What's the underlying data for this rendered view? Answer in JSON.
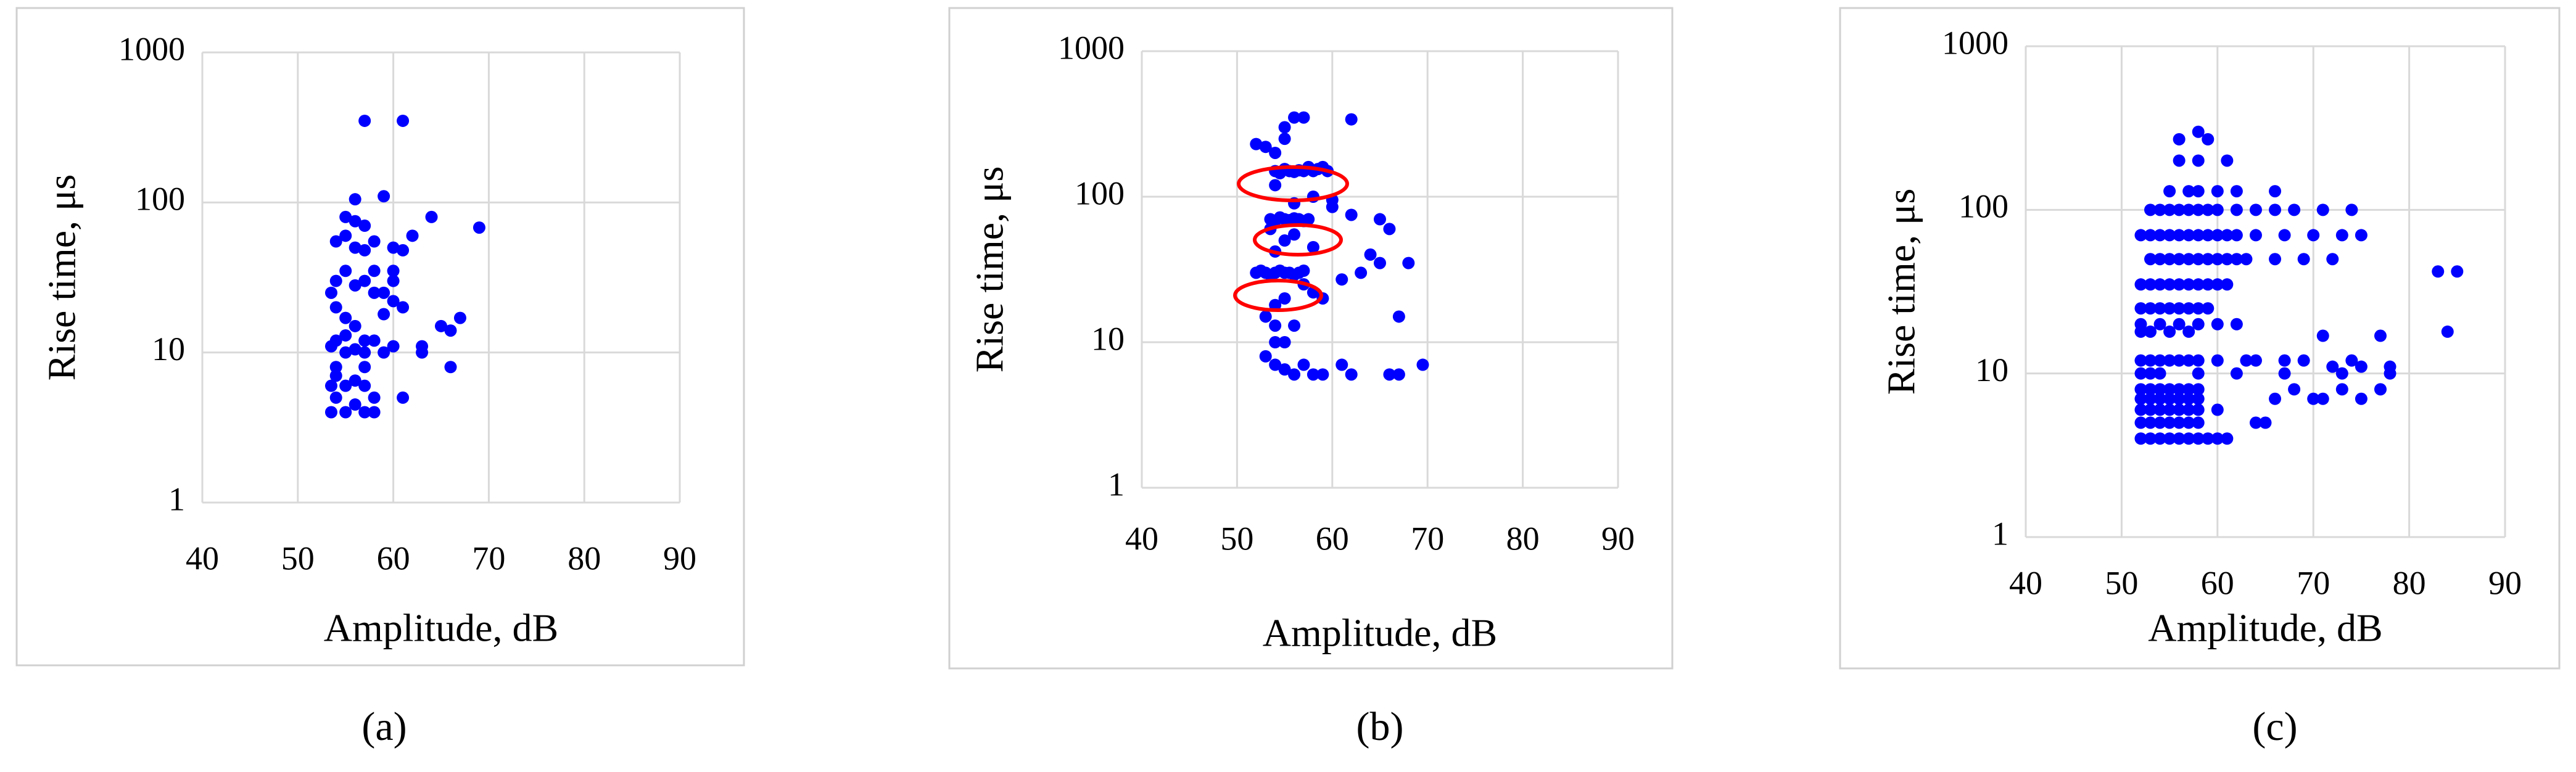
{
  "chart_data": [
    {
      "type": "scatter",
      "panel_label": "(a)",
      "x_label": "Amplitude, dB",
      "y_label": "Rise time, μs",
      "color": "#0000ff",
      "xlim": [
        40,
        90
      ],
      "xticks": [
        40,
        50,
        60,
        70,
        80,
        90
      ],
      "ylim": [
        1,
        1000
      ],
      "yticks": [
        1,
        10,
        100,
        1000
      ],
      "log_y": true,
      "grid": true,
      "x": [
        57,
        61,
        56,
        59,
        64,
        69,
        55,
        56,
        57,
        55,
        54,
        56,
        57,
        58,
        60,
        61,
        62,
        60,
        59,
        55,
        54,
        56,
        57,
        58,
        60,
        59,
        54,
        55,
        53.5,
        56,
        54,
        55,
        57,
        58,
        60,
        56,
        57,
        55,
        53.5,
        59,
        63,
        63,
        65,
        66,
        67,
        66,
        61,
        54,
        55,
        56,
        57,
        58,
        53.5,
        54,
        55,
        57,
        58,
        56,
        53.5,
        54,
        57,
        61,
        60,
        58
      ],
      "values": [
        350,
        350,
        105,
        110,
        80,
        68,
        80,
        75,
        70,
        60,
        55,
        50,
        48,
        55,
        50,
        48,
        60,
        30,
        25,
        35,
        30,
        28,
        30,
        25,
        22,
        18,
        20,
        17,
        25,
        15,
        12,
        13,
        12,
        12,
        11,
        10.5,
        10,
        10,
        11,
        10,
        10,
        11,
        15,
        14,
        17,
        8,
        5,
        7,
        6,
        6.5,
        6,
        5,
        6,
        5,
        4,
        4,
        4,
        4.5,
        4,
        8,
        8,
        20,
        35,
        35
      ]
    },
    {
      "type": "scatter",
      "panel_label": "(b)",
      "x_label": "Amplitude, dB",
      "y_label": "Rise time, μs",
      "color": "#0000ff",
      "xlim": [
        40,
        90
      ],
      "xticks": [
        40,
        50,
        60,
        70,
        80,
        90
      ],
      "ylim": [
        1,
        1000
      ],
      "yticks": [
        1,
        10,
        100,
        1000
      ],
      "log_y": true,
      "grid": true,
      "x": [
        56,
        57,
        62,
        55,
        52,
        53,
        54,
        55,
        54,
        54.5,
        55,
        55.5,
        56,
        56.5,
        57,
        57.5,
        58,
        58.5,
        59,
        59.5,
        53.5,
        54,
        54.5,
        55,
        55.5,
        56,
        56.5,
        57,
        57.5,
        52,
        52.5,
        53,
        53.5,
        54,
        54.5,
        55,
        55.5,
        56,
        56.5,
        57,
        60,
        62,
        65,
        66,
        64,
        65,
        68,
        63,
        61,
        58,
        55,
        54,
        56,
        57,
        58,
        59,
        55,
        54,
        53,
        54,
        56,
        55,
        54,
        53,
        54,
        55,
        56,
        57,
        58,
        59,
        61,
        62,
        66,
        67,
        69.5,
        67,
        58,
        56,
        54,
        53.5,
        60
      ],
      "values": [
        350,
        350,
        340,
        300,
        230,
        220,
        200,
        250,
        150,
        145,
        155,
        150,
        148,
        152,
        150,
        160,
        150,
        155,
        160,
        150,
        70,
        68,
        72,
        70,
        69,
        71,
        70,
        68,
        70,
        30,
        31,
        30,
        29,
        30,
        31,
        30,
        30,
        29,
        30,
        31,
        85,
        75,
        70,
        60,
        40,
        35,
        35,
        30,
        27,
        45,
        50,
        42,
        55,
        25,
        22,
        20,
        20,
        18,
        15,
        13,
        13,
        10,
        10,
        8,
        7,
        6.5,
        6,
        7,
        6,
        6,
        7,
        6,
        6,
        6,
        7,
        15,
        100,
        90,
        120,
        60,
        95
      ]
    },
    {
      "type": "scatter",
      "panel_label": "(c)",
      "x_label": "Amplitude, dB",
      "y_label": "Rise time, μs",
      "color": "#0000ff",
      "xlim": [
        40,
        90
      ],
      "xticks": [
        40,
        50,
        60,
        70,
        80,
        90
      ],
      "ylim": [
        1,
        1000
      ],
      "yticks": [
        1,
        10,
        100,
        1000
      ],
      "log_y": true,
      "grid": true,
      "x": [
        52,
        53,
        54,
        55,
        56,
        57,
        58,
        59,
        60,
        61,
        52,
        53,
        54,
        55,
        56,
        57,
        58,
        64,
        65,
        52,
        53,
        54,
        55,
        56,
        57,
        58,
        60,
        52,
        53,
        54,
        55,
        56,
        57,
        58,
        66,
        70,
        71,
        75,
        52,
        53,
        54,
        55,
        56,
        57,
        58,
        68,
        73,
        77,
        52,
        53,
        54,
        58,
        62,
        67,
        73,
        78,
        52,
        53,
        54,
        55,
        56,
        57,
        58,
        60,
        63,
        64,
        67,
        69,
        74,
        72,
        75,
        78,
        52,
        53,
        55,
        57,
        84,
        71,
        77,
        52,
        54,
        56,
        58,
        60,
        62,
        52,
        53,
        54,
        55,
        56,
        57,
        58,
        59,
        52,
        53,
        54,
        55,
        56,
        57,
        58,
        59,
        60,
        61,
        53,
        54,
        55,
        56,
        57,
        58,
        59,
        60,
        61,
        62,
        63,
        66,
        69,
        72,
        52,
        53,
        54,
        55,
        56,
        57,
        58,
        59,
        60,
        61,
        62,
        64,
        67,
        70,
        73,
        75,
        53,
        54,
        55,
        56,
        57,
        58,
        59,
        60,
        62,
        64,
        66,
        68,
        71,
        74,
        55,
        57,
        58,
        60,
        62,
        66,
        83,
        85,
        56,
        58,
        61,
        56,
        59,
        58
      ],
      "values": [
        4,
        4,
        4,
        4,
        4,
        4,
        4,
        4,
        4,
        4,
        5,
        5,
        5,
        5,
        5,
        5,
        5,
        5,
        5,
        6,
        6,
        6,
        6,
        6,
        6,
        6,
        6,
        7,
        7,
        7,
        7,
        7,
        7,
        7,
        7,
        7,
        7,
        7,
        8,
        8,
        8,
        8,
        8,
        8,
        8,
        8,
        8,
        8,
        10,
        10,
        10,
        10,
        10,
        10,
        10,
        10,
        12,
        12,
        12,
        12,
        12,
        12,
        12,
        12,
        12,
        12,
        12,
        12,
        12,
        11,
        11,
        11,
        18,
        18,
        18,
        18,
        18,
        17,
        17,
        20,
        20,
        20,
        20,
        20,
        20,
        25,
        25,
        25,
        25,
        25,
        25,
        25,
        25,
        35,
        35,
        35,
        35,
        35,
        35,
        35,
        35,
        35,
        35,
        50,
        50,
        50,
        50,
        50,
        50,
        50,
        50,
        50,
        50,
        50,
        50,
        50,
        50,
        70,
        70,
        70,
        70,
        70,
        70,
        70,
        70,
        70,
        70,
        70,
        70,
        70,
        70,
        70,
        70,
        100,
        100,
        100,
        100,
        100,
        100,
        100,
        100,
        100,
        100,
        100,
        100,
        100,
        100,
        130,
        130,
        130,
        130,
        130,
        130,
        42,
        42,
        200,
        200,
        200,
        270,
        270,
        300
      ]
    }
  ]
}
